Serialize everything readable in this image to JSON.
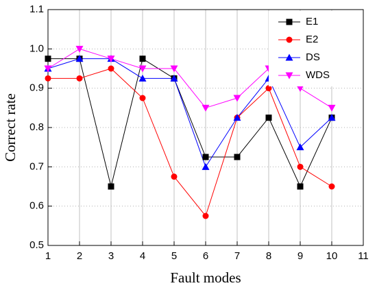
{
  "chart_data": {
    "type": "line",
    "x_label": "Fault modes",
    "y_label": "Correct rate",
    "x": [
      1,
      2,
      3,
      4,
      5,
      6,
      7,
      8,
      9,
      10
    ],
    "series": [
      {
        "name": "E1",
        "color": "#000000",
        "marker": "square",
        "values": [
          0.975,
          0.975,
          0.65,
          0.975,
          0.925,
          0.725,
          0.725,
          0.825,
          0.65,
          0.825
        ]
      },
      {
        "name": "E2",
        "color": "#ff0000",
        "marker": "circle",
        "values": [
          0.925,
          0.925,
          0.95,
          0.875,
          0.675,
          0.575,
          0.825,
          0.9,
          0.7,
          0.65
        ]
      },
      {
        "name": "DS",
        "color": "#0000ff",
        "marker": "triangle-up",
        "values": [
          0.95,
          0.975,
          0.975,
          0.925,
          0.925,
          0.7,
          0.825,
          0.925,
          0.75,
          0.825
        ]
      },
      {
        "name": "WDS",
        "color": "#ff00ff",
        "marker": "triangle-down",
        "values": [
          0.95,
          1.0,
          0.975,
          0.95,
          0.95,
          0.85,
          0.875,
          0.95,
          0.9,
          0.85
        ]
      }
    ],
    "xlim": [
      1,
      11
    ],
    "xticks": [
      1,
      2,
      3,
      4,
      5,
      6,
      7,
      8,
      9,
      10,
      11
    ],
    "ylim": [
      0.5,
      1.1
    ],
    "yticks": [
      0.5,
      0.6,
      0.7,
      0.8,
      0.9,
      {
        "value": 1.0,
        "label": "1.0"
      },
      1.1
    ],
    "grid": true,
    "legend_position": "upper-right"
  }
}
